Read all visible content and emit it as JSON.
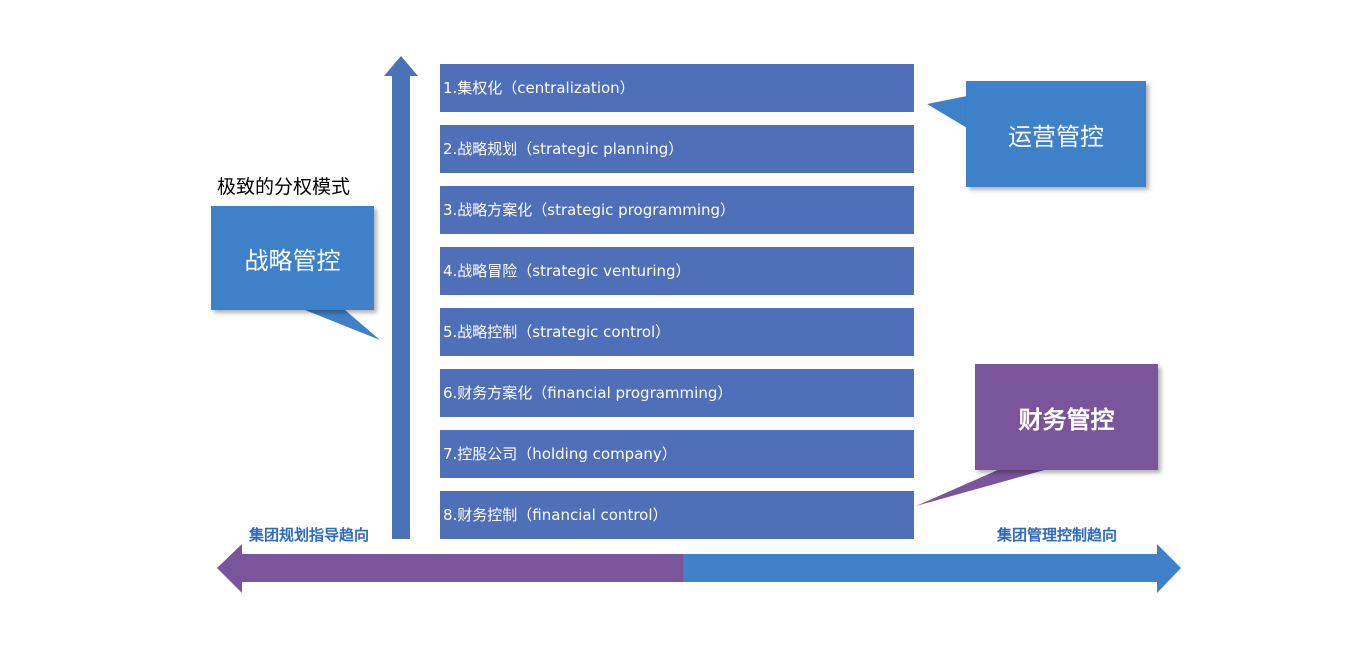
{
  "mode_label": "极致的分权模式",
  "callouts": {
    "strategic": "战略管控",
    "operational": "运营管控",
    "financial": "财务管控"
  },
  "bars": [
    "1.集权化（centralization）",
    "2.战略规划（strategic planning）",
    "3.战略方案化（strategic programming）",
    "4.战略冒险（strategic venturing）",
    "5.战略控制（strategic control）",
    "6.财务方案化（financial programming）",
    "7.控股公司（holding company）",
    "8.财务控制（financial control）"
  ],
  "axis": {
    "left_label": "集团规划指导趋向",
    "right_label": "集团管理控制趋向"
  },
  "colors": {
    "bar_blue": "#4f6fb8",
    "callout_blue": "#3f81c8",
    "callout_purple": "#7b559b",
    "arrow_purple": "#7b559b",
    "arrow_blue": "#3f81c8",
    "vertical_arrow": "#4a72b8"
  }
}
